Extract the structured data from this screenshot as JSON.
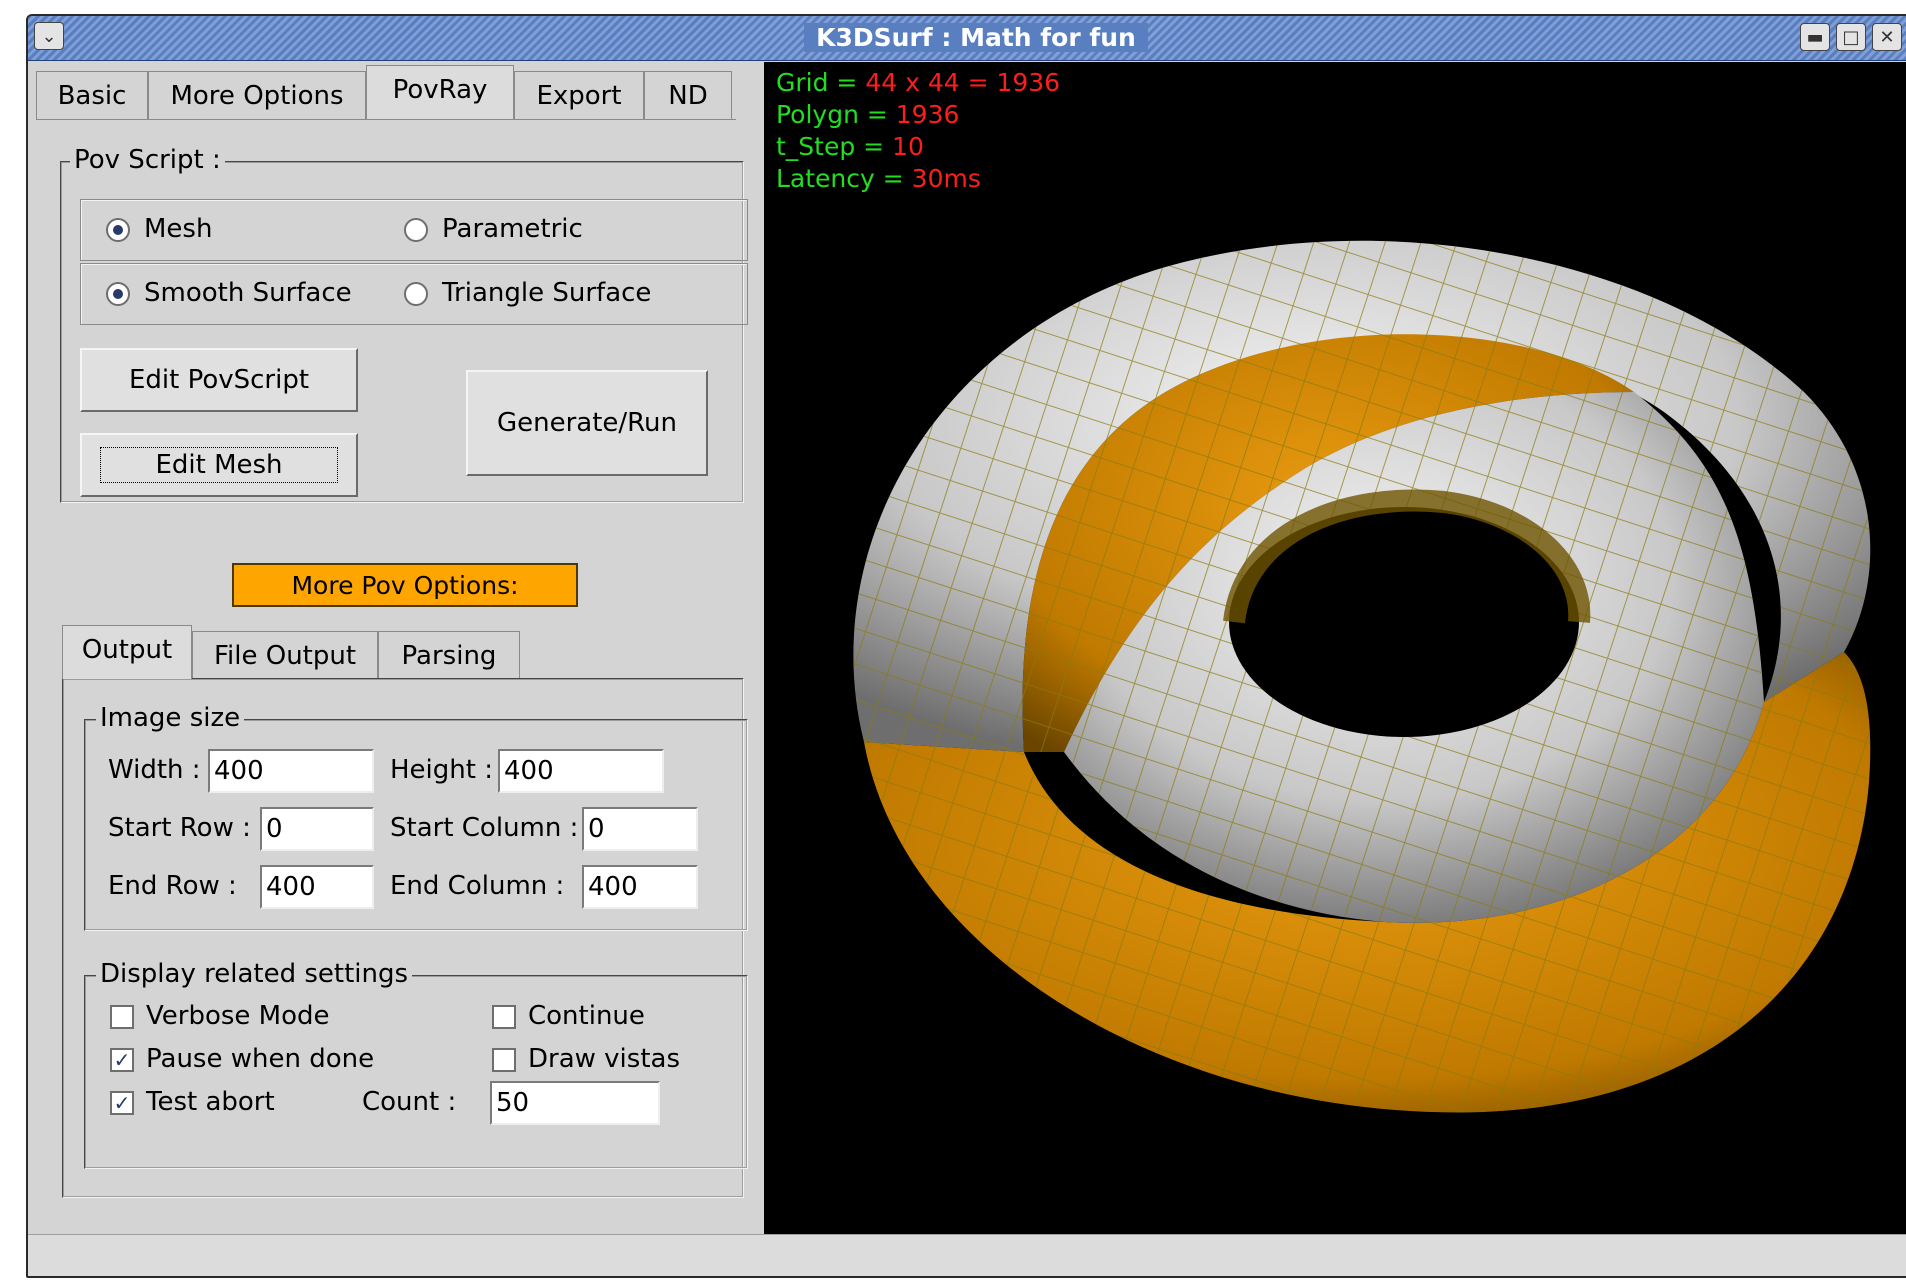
{
  "window": {
    "title": "K3DSurf : Math for fun"
  },
  "tabs": [
    "Basic",
    "More Options",
    "PovRay",
    "Export",
    "ND"
  ],
  "pov_script": {
    "group_title": "Pov Script :",
    "mesh_label": "Mesh",
    "parametric_label": "Parametric",
    "smooth_label": "Smooth Surface",
    "triangle_label": "Triangle Surface",
    "edit_povscript": "Edit PovScript",
    "edit_mesh": "Edit Mesh",
    "generate_run": "Generate/Run"
  },
  "more_pov_options": "More Pov Options:",
  "subtabs": [
    "Output",
    "File Output",
    "Parsing"
  ],
  "image_size": {
    "group_title": "Image size",
    "width_label": "Width :",
    "width_value": "400",
    "height_label": "Height :",
    "height_value": "400",
    "start_row_label": "Start Row :",
    "start_row_value": "0",
    "start_col_label": "Start Column :",
    "start_col_value": "0",
    "end_row_label": "End Row :",
    "end_row_value": "400",
    "end_col_label": "End Column :",
    "end_col_value": "400"
  },
  "display": {
    "group_title": "Display related settings",
    "verbose": "Verbose Mode",
    "continue": "Continue",
    "pause": "Pause when done",
    "draw_vistas": "Draw vistas",
    "test_abort": "Test abort",
    "count_label": "Count :",
    "count_value": "50"
  },
  "stats": {
    "grid_label": "Grid = ",
    "grid_value": "44 x 44 = 1936",
    "polygn_label": "Polygn = ",
    "polygn_value": "1936",
    "tstep_label": "t_Step = ",
    "tstep_value": "10",
    "latency_label": "Latency = ",
    "latency_value": "30ms"
  },
  "colors": {
    "accent": "#ffa500",
    "surface_light": "#e6e6e6",
    "surface_orange": "#d08a00",
    "stat_label": "#22dd22",
    "stat_value": "#ff1c1c"
  }
}
